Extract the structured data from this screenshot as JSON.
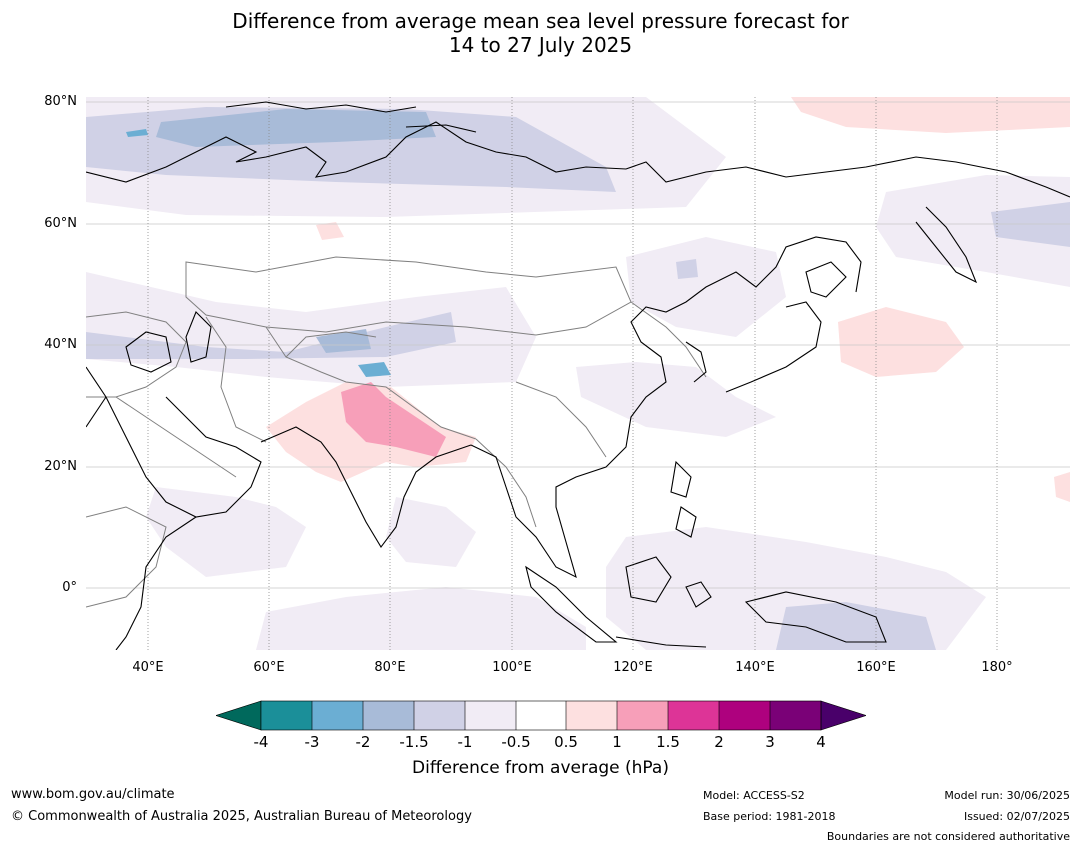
{
  "title": {
    "line1": "Difference from average mean sea level pressure forecast for",
    "line2": "14 to 27 July 2025"
  },
  "map": {
    "lat_labels": [
      "80°N",
      "60°N",
      "40°N",
      "20°N",
      "0°"
    ],
    "lon_labels": [
      "40°E",
      "60°E",
      "80°E",
      "100°E",
      "120°E",
      "140°E",
      "160°E",
      "180°"
    ],
    "colors": {
      "n_gt4": "#00695c",
      "n4_3": "#1b8f99",
      "n3_2": "#6baed3",
      "n2_1_5": "#a8bbd8",
      "n1_5_1": "#d0d1e6",
      "n1_0_5": "#f1ecf5",
      "n0_5_0_5": "#ffffff",
      "p0_5_1": "#fde0e0",
      "p1_1_5": "#f79fb9",
      "p1_5_2": "#dd3497",
      "p2_3": "#ae017e",
      "p3_4": "#7a0177",
      "p_gt4": "#49006a"
    }
  },
  "colorbar": {
    "ticks": [
      "-4",
      "-3",
      "-2",
      "-1.5",
      "-1",
      "-0.5",
      "0.5",
      "1",
      "1.5",
      "2",
      "3",
      "4"
    ],
    "label": "Difference from average (hPa)"
  },
  "footer": {
    "website": "www.bom.gov.au/climate",
    "copyright": "© Commonwealth of Australia 2025, Australian Bureau of Meteorology",
    "model": "Model: ACCESS-S2",
    "base_period": "Base period: 1981-2018",
    "model_run": "Model run: 30/06/2025",
    "issued": "Issued: 02/07/2025",
    "disclaimer": "Boundaries are not considered authoritative"
  }
}
